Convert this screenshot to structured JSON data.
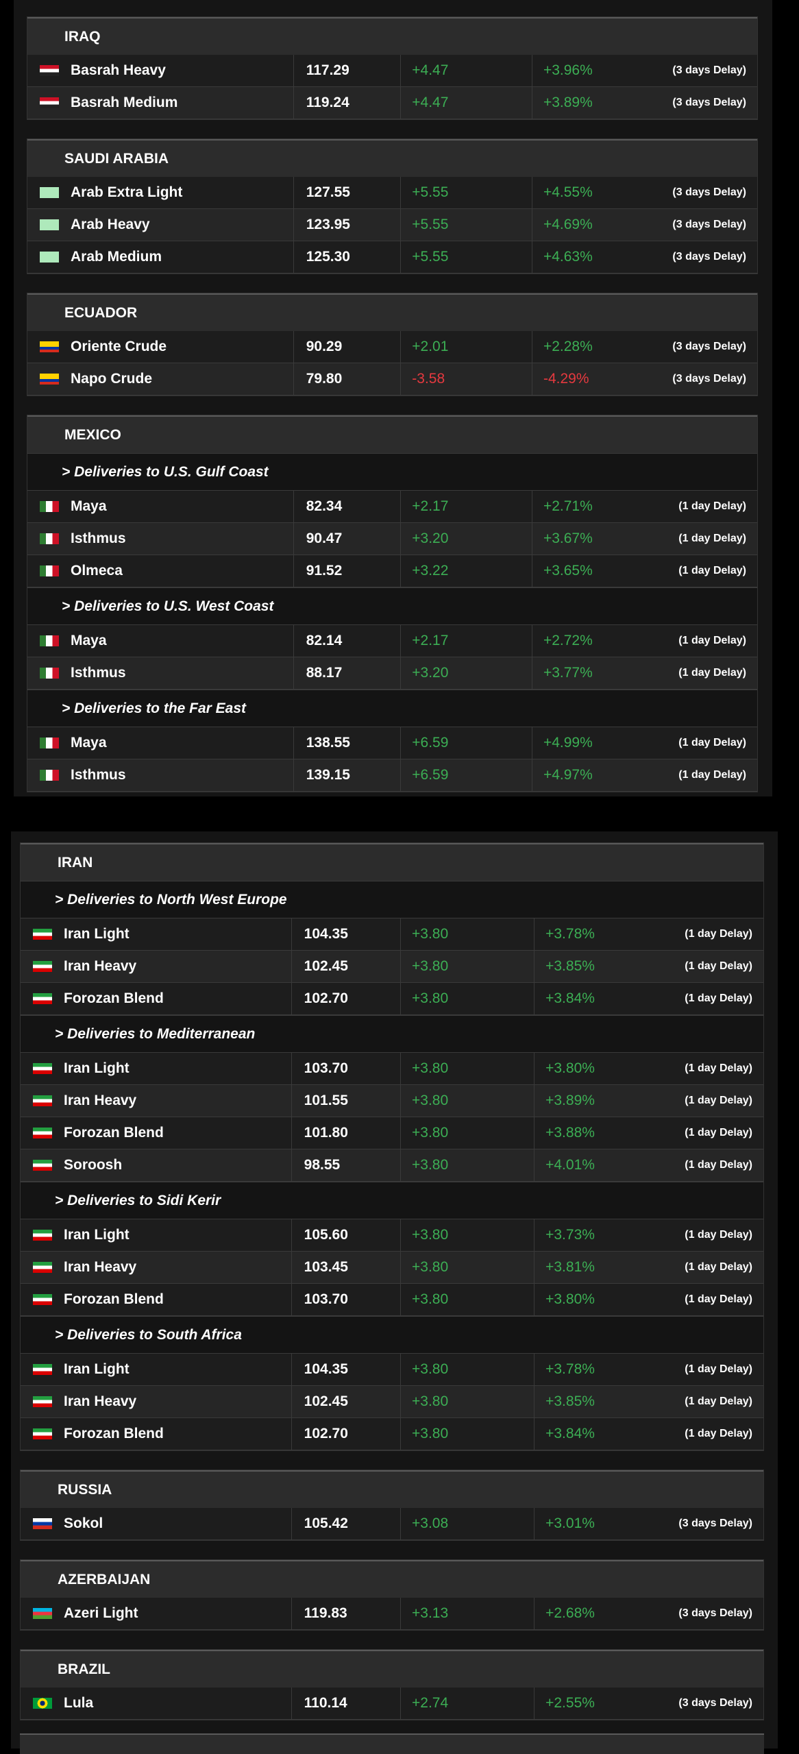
{
  "panels": [
    {
      "groups": [
        {
          "country": "IRAQ",
          "sections": [
            {
              "rows": [
                {
                  "name": "Basrah Heavy",
                  "price": "117.29",
                  "change": "+4.47",
                  "pct": "+3.96%",
                  "delay": "(3 days Delay)"
                },
                {
                  "name": "Basrah Medium",
                  "price": "119.24",
                  "change": "+4.47",
                  "pct": "+3.89%",
                  "delay": "(3 days Delay)"
                }
              ]
            }
          ]
        },
        {
          "country": "SAUDI ARABIA",
          "sections": [
            {
              "rows": [
                {
                  "name": "Arab Extra Light",
                  "price": "127.55",
                  "change": "+5.55",
                  "pct": "+4.55%",
                  "delay": "(3 days Delay)"
                },
                {
                  "name": "Arab Heavy",
                  "price": "123.95",
                  "change": "+5.55",
                  "pct": "+4.69%",
                  "delay": "(3 days Delay)"
                },
                {
                  "name": "Arab Medium",
                  "price": "125.30",
                  "change": "+5.55",
                  "pct": "+4.63%",
                  "delay": "(3 days Delay)"
                }
              ]
            }
          ]
        },
        {
          "country": "ECUADOR",
          "sections": [
            {
              "rows": [
                {
                  "name": "Oriente Crude",
                  "price": "90.29",
                  "change": "+2.01",
                  "pct": "+2.28%",
                  "delay": "(3 days Delay)"
                },
                {
                  "name": "Napo Crude",
                  "price": "79.80",
                  "change": "-3.58",
                  "pct": "-4.29%",
                  "delay": "(3 days Delay)"
                }
              ]
            }
          ]
        },
        {
          "country": "MEXICO",
          "sections": [
            {
              "heading": "> Deliveries to U.S. Gulf Coast",
              "rows": [
                {
                  "name": "Maya",
                  "price": "82.34",
                  "change": "+2.17",
                  "pct": "+2.71%",
                  "delay": "(1 day Delay)"
                },
                {
                  "name": "Isthmus",
                  "price": "90.47",
                  "change": "+3.20",
                  "pct": "+3.67%",
                  "delay": "(1 day Delay)"
                },
                {
                  "name": "Olmeca",
                  "price": "91.52",
                  "change": "+3.22",
                  "pct": "+3.65%",
                  "delay": "(1 day Delay)"
                }
              ]
            },
            {
              "heading": "> Deliveries to U.S. West Coast",
              "rows": [
                {
                  "name": "Maya",
                  "price": "82.14",
                  "change": "+2.17",
                  "pct": "+2.72%",
                  "delay": "(1 day Delay)"
                },
                {
                  "name": "Isthmus",
                  "price": "88.17",
                  "change": "+3.20",
                  "pct": "+3.77%",
                  "delay": "(1 day Delay)"
                }
              ]
            },
            {
              "heading": "> Deliveries to the Far East",
              "rows": [
                {
                  "name": "Maya",
                  "price": "138.55",
                  "change": "+6.59",
                  "pct": "+4.99%",
                  "delay": "(1 day Delay)"
                },
                {
                  "name": "Isthmus",
                  "price": "139.15",
                  "change": "+6.59",
                  "pct": "+4.97%",
                  "delay": "(1 day Delay)"
                }
              ]
            }
          ]
        }
      ]
    },
    {
      "groups": [
        {
          "country": "IRAN",
          "sections": [
            {
              "heading": "> Deliveries to North West Europe",
              "rows": [
                {
                  "name": "Iran Light",
                  "price": "104.35",
                  "change": "+3.80",
                  "pct": "+3.78%",
                  "delay": "(1 day Delay)"
                },
                {
                  "name": "Iran Heavy",
                  "price": "102.45",
                  "change": "+3.80",
                  "pct": "+3.85%",
                  "delay": "(1 day Delay)"
                },
                {
                  "name": "Forozan Blend",
                  "price": "102.70",
                  "change": "+3.80",
                  "pct": "+3.84%",
                  "delay": "(1 day Delay)"
                }
              ]
            },
            {
              "heading": "> Deliveries to Mediterranean",
              "rows": [
                {
                  "name": "Iran Light",
                  "price": "103.70",
                  "change": "+3.80",
                  "pct": "+3.80%",
                  "delay": "(1 day Delay)"
                },
                {
                  "name": "Iran Heavy",
                  "price": "101.55",
                  "change": "+3.80",
                  "pct": "+3.89%",
                  "delay": "(1 day Delay)"
                },
                {
                  "name": "Forozan Blend",
                  "price": "101.80",
                  "change": "+3.80",
                  "pct": "+3.88%",
                  "delay": "(1 day Delay)"
                },
                {
                  "name": "Soroosh",
                  "price": "98.55",
                  "change": "+3.80",
                  "pct": "+4.01%",
                  "delay": "(1 day Delay)"
                }
              ]
            },
            {
              "heading": "> Deliveries to Sidi Kerir",
              "rows": [
                {
                  "name": "Iran Light",
                  "price": "105.60",
                  "change": "+3.80",
                  "pct": "+3.73%",
                  "delay": "(1 day Delay)"
                },
                {
                  "name": "Iran Heavy",
                  "price": "103.45",
                  "change": "+3.80",
                  "pct": "+3.81%",
                  "delay": "(1 day Delay)"
                },
                {
                  "name": "Forozan Blend",
                  "price": "103.70",
                  "change": "+3.80",
                  "pct": "+3.80%",
                  "delay": "(1 day Delay)"
                }
              ]
            },
            {
              "heading": "> Deliveries to South Africa",
              "rows": [
                {
                  "name": "Iran Light",
                  "price": "104.35",
                  "change": "+3.80",
                  "pct": "+3.78%",
                  "delay": "(1 day Delay)"
                },
                {
                  "name": "Iran Heavy",
                  "price": "102.45",
                  "change": "+3.80",
                  "pct": "+3.85%",
                  "delay": "(1 day Delay)"
                },
                {
                  "name": "Forozan Blend",
                  "price": "102.70",
                  "change": "+3.80",
                  "pct": "+3.84%",
                  "delay": "(1 day Delay)"
                }
              ]
            }
          ]
        },
        {
          "country": "RUSSIA",
          "sections": [
            {
              "rows": [
                {
                  "name": "Sokol",
                  "price": "105.42",
                  "change": "+3.08",
                  "pct": "+3.01%",
                  "delay": "(3 days Delay)"
                }
              ]
            }
          ]
        },
        {
          "country": "AZERBAIJAN",
          "sections": [
            {
              "rows": [
                {
                  "name": "Azeri Light",
                  "price": "119.83",
                  "change": "+3.13",
                  "pct": "+2.68%",
                  "delay": "(3 days Delay)"
                }
              ]
            }
          ]
        },
        {
          "country": "BRAZIL",
          "sections": [
            {
              "rows": [
                {
                  "name": "Lula",
                  "price": "110.14",
                  "change": "+2.74",
                  "pct": "+2.55%",
                  "delay": "(3 days Delay)"
                }
              ]
            }
          ]
        }
      ]
    }
  ]
}
